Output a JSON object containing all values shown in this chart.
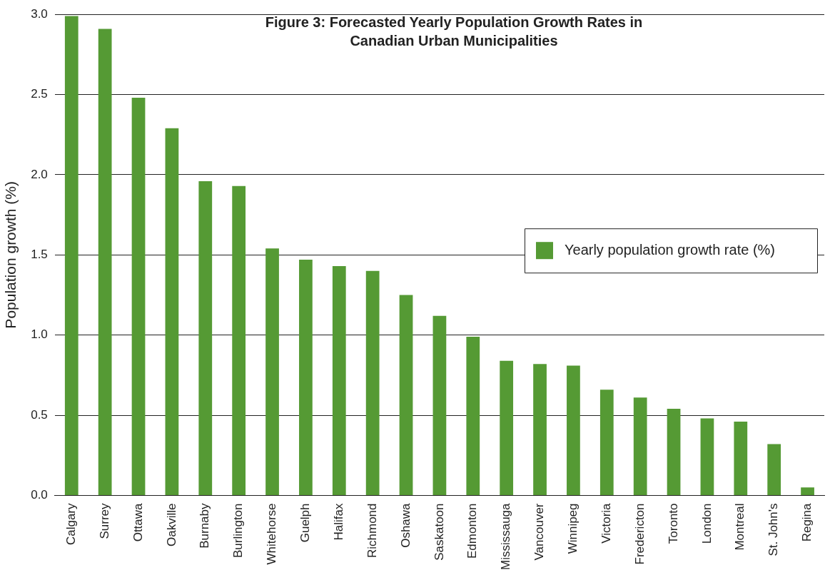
{
  "chart_data": {
    "type": "bar",
    "title": "Figure 3: Forecasted Yearly Population Growth Rates in Canadian Urban Municipalities",
    "ylabel": "Population growth (%)",
    "categories": [
      "Calgary",
      "Surrey",
      "Ottawa",
      "Oakville",
      "Burnaby",
      "Burlington",
      "Whitehorse",
      "Guelph",
      "Halifax",
      "Richmond",
      "Oshawa",
      "Saskatoon",
      "Edmonton",
      "Mississauga",
      "Vancouver",
      "Winnipeg",
      "Victoria",
      "Fredericton",
      "Toronto",
      "London",
      "Montreal",
      "St. John's",
      "Regina"
    ],
    "series": [
      {
        "name": "Yearly population growth rate (%)",
        "color": "#559a34",
        "values": [
          2.99,
          2.91,
          2.48,
          2.29,
          1.96,
          1.93,
          1.54,
          1.47,
          1.43,
          1.4,
          1.25,
          1.12,
          0.99,
          0.84,
          0.82,
          0.81,
          0.66,
          0.61,
          0.54,
          0.48,
          0.46,
          0.32,
          0.05
        ]
      }
    ],
    "ylim": [
      0,
      3
    ],
    "yticks": [
      {
        "value": 0,
        "label": "0.0"
      },
      {
        "value": 0.5,
        "label": "0.5"
      },
      {
        "value": 1,
        "label": "1.0"
      },
      {
        "value": 1.5,
        "label": "1.5"
      },
      {
        "value": 2,
        "label": "2.0"
      },
      {
        "value": 2.5,
        "label": "2.5"
      },
      {
        "value": 3,
        "label": "3.0"
      }
    ],
    "grid": "y",
    "legend": "right"
  }
}
